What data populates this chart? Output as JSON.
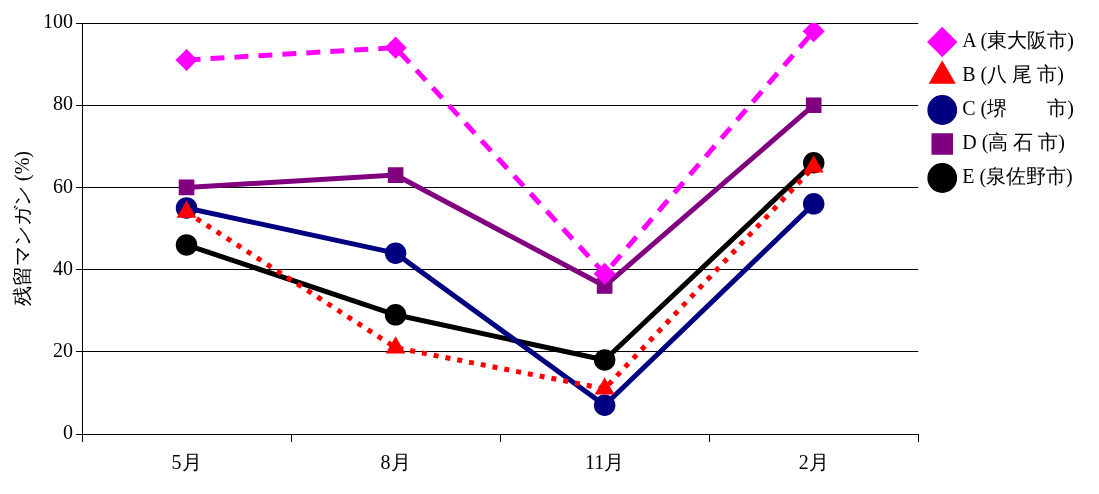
{
  "chart_data": {
    "type": "line",
    "ylabel": "残留マンガン (%)",
    "categories": [
      "5月",
      "8月",
      "11月",
      "2月"
    ],
    "ylim": [
      0,
      100
    ],
    "yticks": [
      0,
      20,
      40,
      60,
      80,
      100
    ],
    "grid": "y",
    "legend": "top right",
    "series": [
      {
        "name": "A (東大阪市)",
        "color": "#ff00ff",
        "marker": "diamond",
        "line_style": "dashed",
        "values": [
          91,
          94,
          39,
          98
        ]
      },
      {
        "name": "B (八 尾 市)",
        "color": "#ff0000",
        "marker": "triangle",
        "line_style": "dotted",
        "values": [
          54,
          21,
          11,
          65
        ]
      },
      {
        "name": "C (堺　　市)",
        "color": "#000080",
        "marker": "circle",
        "line_style": "solid",
        "values": [
          55,
          44,
          7,
          56
        ]
      },
      {
        "name": "D (高 石 市)",
        "color": "#800080",
        "marker": "square",
        "line_style": "solid",
        "values": [
          60,
          63,
          36,
          80
        ]
      },
      {
        "name": "E (泉佐野市)",
        "color": "#000000",
        "marker": "circle",
        "line_style": "solid",
        "values": [
          46,
          29,
          18,
          66
        ]
      }
    ]
  }
}
